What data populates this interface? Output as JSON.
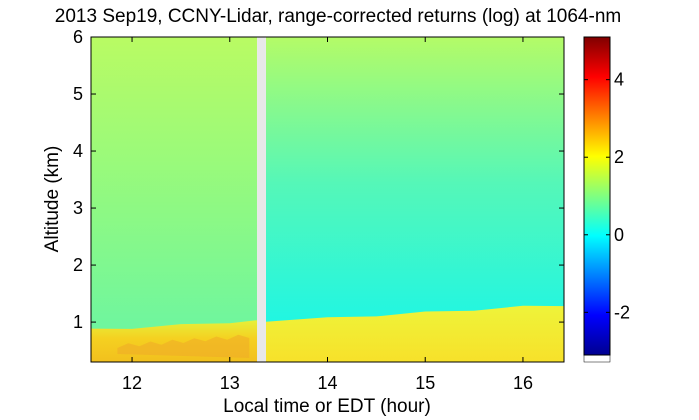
{
  "chart_data": {
    "type": "heatmap",
    "title": "2013 Sep19, CCNY-Lidar, range-corrected returns (log) at 1064-nm",
    "xlabel": "Local time or EDT (hour)",
    "ylabel": "Altitude (km)",
    "xlim": [
      11.58,
      16.42
    ],
    "ylim": [
      0.3,
      6.0
    ],
    "x_ticks": [
      "12",
      "13",
      "14",
      "15",
      "16"
    ],
    "y_ticks": [
      "1",
      "2",
      "3",
      "4",
      "5",
      "6"
    ],
    "data_gap": [
      13.28,
      13.37
    ],
    "boundary_layer_top_km": [
      {
        "x": 11.58,
        "y": 0.85
      },
      {
        "x": 12.0,
        "y": 0.88
      },
      {
        "x": 12.5,
        "y": 0.93
      },
      {
        "x": 13.0,
        "y": 0.98
      },
      {
        "x": 13.3,
        "y": 1.0
      },
      {
        "x": 14.0,
        "y": 1.05
      },
      {
        "x": 14.5,
        "y": 1.1
      },
      {
        "x": 15.0,
        "y": 1.15
      },
      {
        "x": 15.5,
        "y": 1.2
      },
      {
        "x": 16.0,
        "y": 1.25
      },
      {
        "x": 16.42,
        "y": 1.28
      }
    ],
    "colorbar": {
      "range": [
        -3.1,
        5.1
      ],
      "ticks": [
        "-2",
        "0",
        "2",
        "4"
      ],
      "colors": [
        "#00008f",
        "#0000ff",
        "#0080ff",
        "#00ffff",
        "#80ff80",
        "#ffff00",
        "#ff8000",
        "#ff0000",
        "#800000"
      ]
    }
  }
}
